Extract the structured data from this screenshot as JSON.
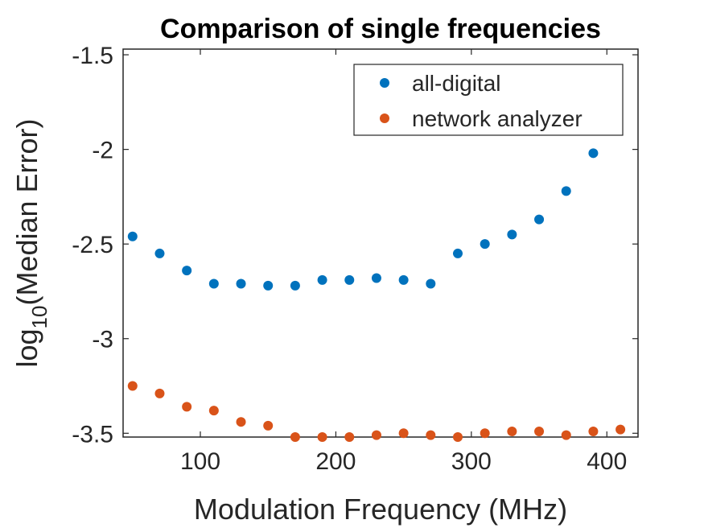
{
  "chart_data": {
    "type": "scatter",
    "title": "Comparison of single frequencies",
    "xlabel": "Modulation Frequency (MHz)",
    "ylabel": {
      "prefix": "log",
      "subscript": "10",
      "suffix": "(Median Error)"
    },
    "xlim": [
      43,
      423
    ],
    "ylim": [
      -3.52,
      -1.47
    ],
    "xticks": [
      100,
      200,
      300,
      400
    ],
    "yticks": [
      -1.5,
      -2,
      -2.5,
      -3,
      -3.5
    ],
    "xtick_labels": [
      "100",
      "200",
      "300",
      "400"
    ],
    "ytick_labels": [
      "-1.5",
      "-2",
      "-2.5",
      "-3",
      "-3.5"
    ],
    "grid": false,
    "legend_position": "top-right",
    "series": [
      {
        "name": "all-digital",
        "color": "#0072BD",
        "x": [
          50,
          70,
          90,
          110,
          130,
          150,
          170,
          190,
          210,
          230,
          250,
          270,
          290,
          310,
          330,
          350,
          370,
          390
        ],
        "y": [
          -2.46,
          -2.55,
          -2.64,
          -2.71,
          -2.71,
          -2.72,
          -2.72,
          -2.69,
          -2.69,
          -2.68,
          -2.69,
          -2.71,
          -2.55,
          -2.5,
          -2.45,
          -2.37,
          -2.22,
          -2.02
        ]
      },
      {
        "name": "network analyzer",
        "color": "#D95319",
        "x": [
          50,
          70,
          90,
          110,
          130,
          150,
          170,
          190,
          210,
          230,
          250,
          270,
          290,
          310,
          330,
          350,
          370,
          390,
          410
        ],
        "y": [
          -3.25,
          -3.29,
          -3.36,
          -3.38,
          -3.44,
          -3.46,
          -3.52,
          -3.52,
          -3.52,
          -3.51,
          -3.5,
          -3.51,
          -3.52,
          -3.5,
          -3.49,
          -3.49,
          -3.51,
          -3.49,
          -3.48
        ]
      }
    ]
  }
}
